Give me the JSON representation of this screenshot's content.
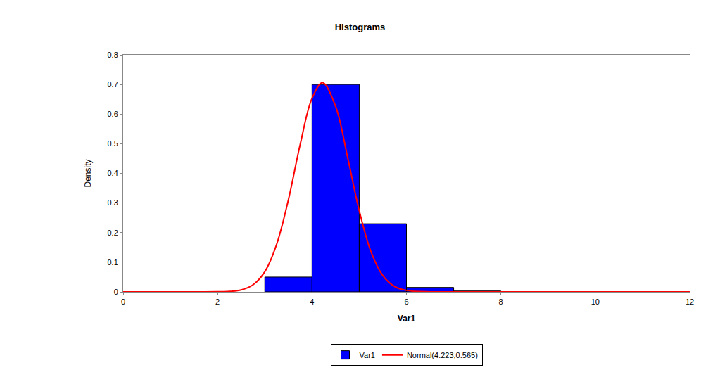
{
  "chart_data": {
    "type": "histogram",
    "title": "Histograms",
    "x_label": "Var1",
    "y_label": "Density",
    "bins": [
      3,
      4,
      5,
      6,
      7,
      8
    ],
    "series": [
      {
        "name": "Var1",
        "type": "bar",
        "color": "#0000ff",
        "values": [
          0.05,
          0.7,
          0.23,
          0.015,
          0.003
        ]
      },
      {
        "name": "Normal(4.223,0.565)",
        "type": "line",
        "color": "#ff0000",
        "x": [
          0,
          1,
          2,
          2.25,
          2.5,
          2.75,
          3,
          3.25,
          3.5,
          3.75,
          4,
          4.223,
          4.5,
          4.75,
          5,
          5.25,
          5.5,
          5.75,
          6,
          6.5,
          7,
          8,
          10,
          12
        ],
        "values": [
          0,
          0,
          0.0003,
          0.0016,
          0.0067,
          0.0236,
          0.068,
          0.16,
          0.311,
          0.498,
          0.653,
          0.706,
          0.626,
          0.457,
          0.274,
          0.135,
          0.055,
          0.018,
          0.005,
          0.0002,
          0,
          0,
          0,
          0
        ]
      }
    ],
    "xlim": [
      0,
      12
    ],
    "xticks": [
      0,
      2,
      4,
      6,
      8,
      10,
      12
    ],
    "ylim": [
      0,
      0.8
    ],
    "yticks": [
      0,
      0.1,
      0.2,
      0.3,
      0.4,
      0.5,
      0.6,
      0.7,
      0.8
    ],
    "grid": false,
    "legend": "bottom"
  }
}
